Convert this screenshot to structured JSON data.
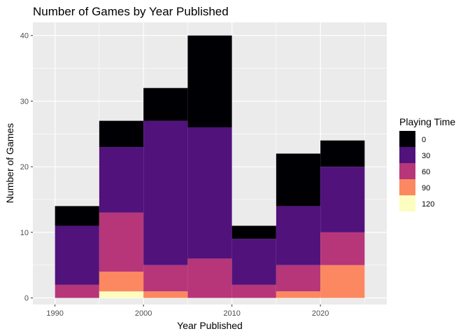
{
  "chart_data": {
    "type": "bar",
    "title": "Number of Games by Year Published",
    "xlabel": "Year Published",
    "ylabel": "Number of Games",
    "xlim": [
      1987.5,
      2027.5
    ],
    "ylim": [
      -1,
      42
    ],
    "x_ticks": [
      1990,
      2000,
      2010,
      2020
    ],
    "y_ticks": [
      0,
      10,
      20,
      30,
      40
    ],
    "bins": [
      {
        "start": 1990,
        "end": 1995
      },
      {
        "start": 1995,
        "end": 2000
      },
      {
        "start": 2000,
        "end": 2005
      },
      {
        "start": 2005,
        "end": 2010
      },
      {
        "start": 2010,
        "end": 2015
      },
      {
        "start": 2015,
        "end": 2020
      },
      {
        "start": 2020,
        "end": 2025
      }
    ],
    "series": [
      {
        "name": "0",
        "color": "#000004",
        "values": [
          3,
          4,
          5,
          14,
          2,
          8,
          4
        ]
      },
      {
        "name": "30",
        "color": "#51127C",
        "values": [
          9,
          10,
          22,
          20,
          7,
          9,
          10
        ]
      },
      {
        "name": "60",
        "color": "#B63679",
        "values": [
          2,
          9,
          4,
          6,
          2,
          4,
          5
        ]
      },
      {
        "name": "90",
        "color": "#FB8861",
        "values": [
          0,
          3,
          1,
          0,
          0,
          1,
          5
        ]
      },
      {
        "name": "120",
        "color": "#FCFDBF",
        "values": [
          0,
          1,
          0,
          0,
          0,
          0,
          0
        ]
      }
    ],
    "legend": {
      "title": "Playing Time",
      "position": "right"
    },
    "grid": true,
    "panel_background": "#EBEBEB"
  }
}
